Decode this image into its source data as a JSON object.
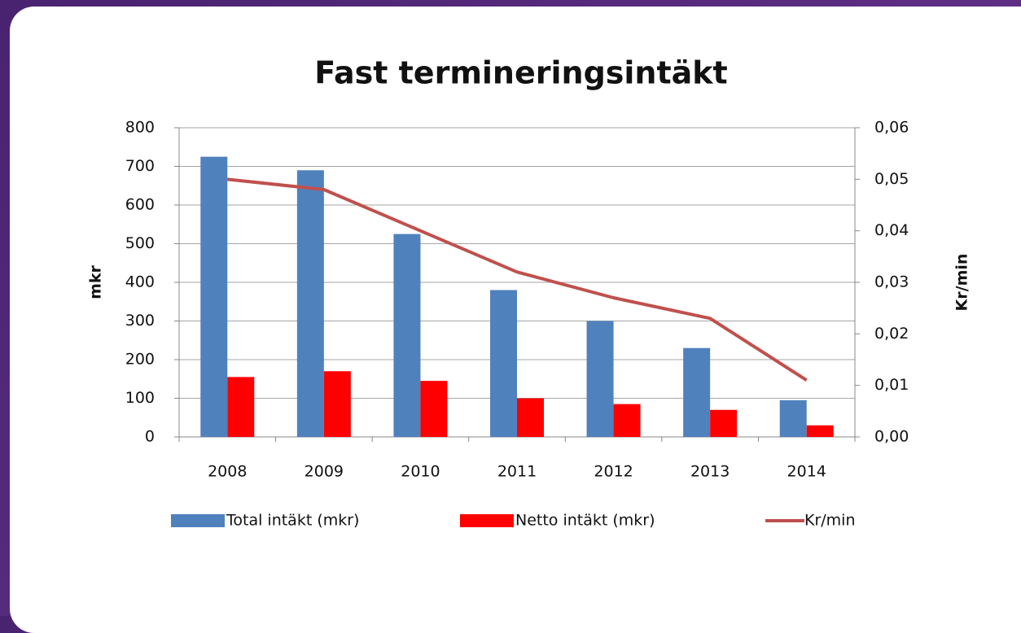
{
  "chart_data": {
    "type": "bar",
    "title": "Fast termineringsintäkt",
    "categories": [
      "2008",
      "2009",
      "2010",
      "2011",
      "2012",
      "2013",
      "2014"
    ],
    "series": [
      {
        "name": "Total intäkt (mkr)",
        "color": "#4f81bd",
        "values": [
          725,
          690,
          525,
          380,
          300,
          230,
          95
        ]
      },
      {
        "name": "Netto intäkt (mkr)",
        "color": "#ff0000",
        "values": [
          155,
          170,
          145,
          100,
          85,
          70,
          30
        ]
      },
      {
        "name": "Kr/min",
        "color": "#c0504d",
        "type": "line",
        "axis": "y2",
        "values": [
          0.05,
          0.048,
          0.04,
          0.032,
          0.027,
          0.023,
          0.011
        ]
      }
    ],
    "ylabel": "mkr",
    "y2label": "Kr/min",
    "ylim": [
      0,
      800
    ],
    "yticks": [
      0,
      100,
      200,
      300,
      400,
      500,
      600,
      700,
      800
    ],
    "y2lim": [
      0,
      0.06
    ],
    "y2ticks": [
      {
        "value": 0,
        "label": "0,00"
      },
      {
        "value": 0.01,
        "label": "0,01"
      },
      {
        "value": 0.02,
        "label": "0,02"
      },
      {
        "value": 0.03,
        "label": "0,03"
      },
      {
        "value": 0.04,
        "label": "0,04"
      },
      {
        "value": 0.05,
        "label": "0,05"
      },
      {
        "value": 0.06,
        "label": "0,06"
      }
    ],
    "grid": true,
    "legend": "bottom"
  }
}
